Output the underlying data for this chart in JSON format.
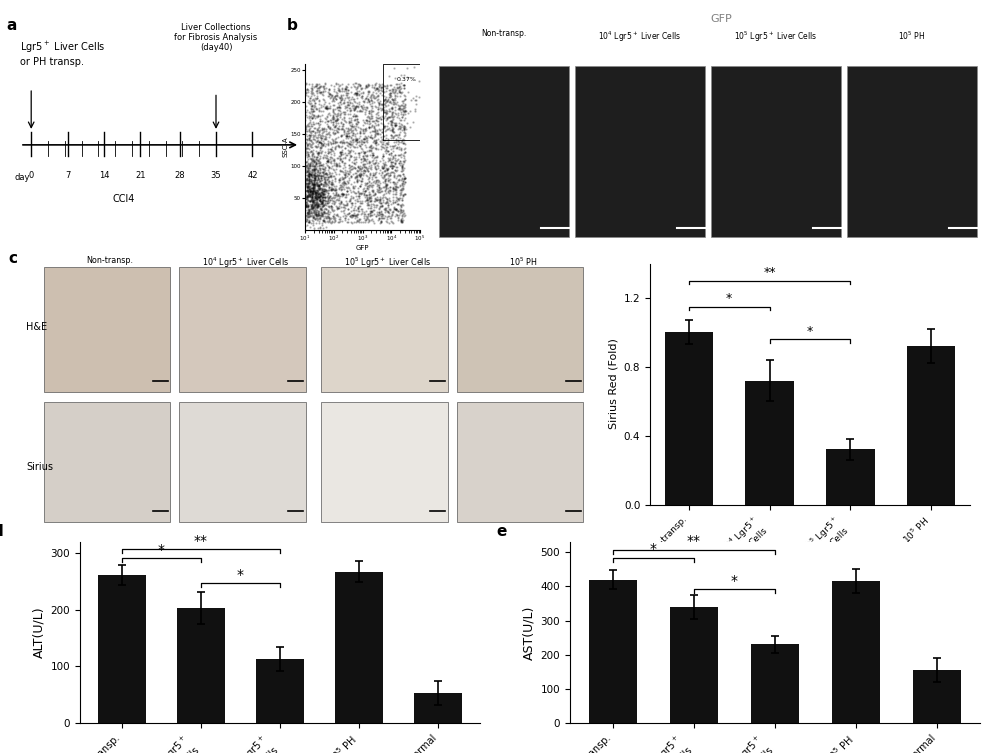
{
  "panel_d": {
    "values": [
      262,
      203,
      113,
      268,
      53
    ],
    "errors": [
      18,
      28,
      22,
      18,
      22
    ],
    "ylabel": "ALT(U/L)",
    "ylim": [
      0,
      320
    ],
    "yticks": [
      0,
      100,
      200,
      300
    ]
  },
  "panel_e": {
    "values": [
      420,
      340,
      230,
      415,
      155
    ],
    "errors": [
      28,
      35,
      25,
      35,
      35
    ],
    "ylabel": "AST(U/L)",
    "ylim": [
      0,
      530
    ],
    "yticks": [
      0,
      100,
      200,
      300,
      400,
      500
    ]
  },
  "panel_c_bar": {
    "values": [
      1.0,
      0.72,
      0.32,
      0.92
    ],
    "errors": [
      0.07,
      0.12,
      0.06,
      0.1
    ],
    "ylabel": "Sirius Red (Fold)",
    "ylim": [
      0,
      1.4
    ],
    "yticks": [
      0.0,
      0.4,
      0.8,
      1.2
    ]
  },
  "bar_color": "#111111",
  "fig_bg": "#ffffff"
}
